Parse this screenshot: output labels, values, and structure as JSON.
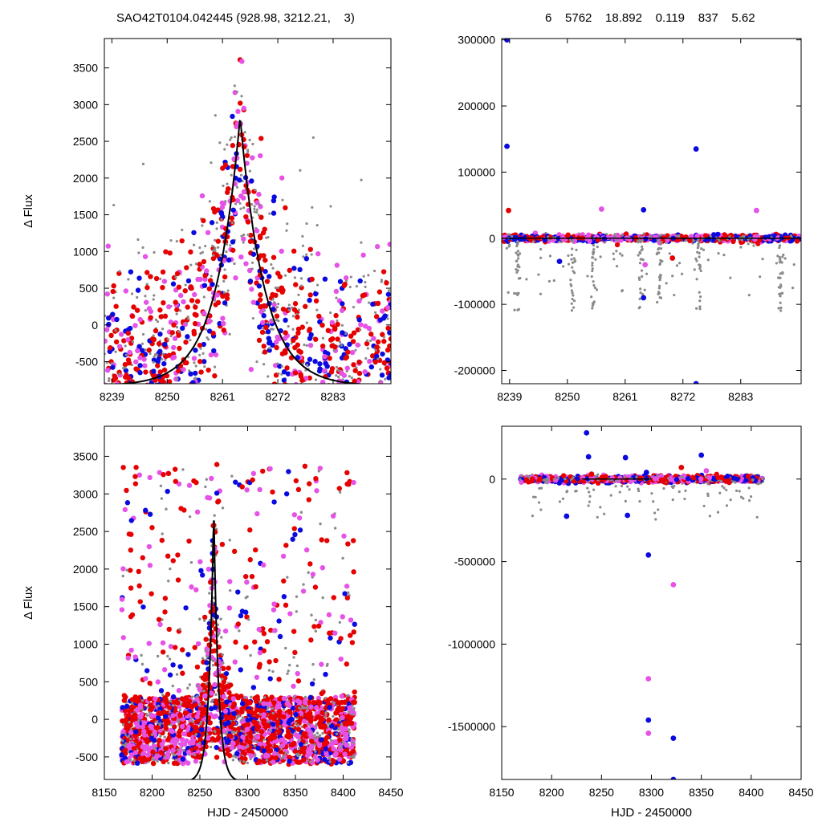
{
  "header": {
    "left": "SAO42T0104.042445 (928.98, 3212.21,    3)",
    "right": "6    5762    18.892    0.119    837    5.62"
  },
  "colors": {
    "gray": "#8a8a8a",
    "blue": "#0a0ae0",
    "red": "#e60000",
    "magenta": "#e652e6",
    "model": "#000000"
  },
  "chart_data": [
    {
      "id": "top-left",
      "type": "scatter",
      "title": "",
      "xlabel": "",
      "ylabel": "Δ Flux",
      "xlim": [
        8237.5,
        8294.5
      ],
      "ylim": [
        -800,
        3900
      ],
      "xticks": [
        8239,
        8250,
        8261,
        8272,
        8283
      ],
      "yticks": [
        -500,
        0,
        500,
        1000,
        1500,
        2000,
        2500,
        3000,
        3500
      ],
      "model": {
        "t0": 8264.5,
        "peak": 2830,
        "base": -830,
        "tau": 4.8
      },
      "series_colors": [
        "gray",
        "blue",
        "red",
        "magenta"
      ]
    },
    {
      "id": "top-right",
      "type": "scatter",
      "title": "",
      "xlabel": "",
      "ylabel": "",
      "xlim": [
        8237.5,
        8294.5
      ],
      "ylim": [
        -220000,
        302000
      ],
      "xticks": [
        8239,
        8250,
        8261,
        8272,
        8283
      ],
      "yticks": [
        -200000,
        -100000,
        0,
        100000,
        200000,
        300000
      ],
      "outliers": [
        [
          8238.5,
          300000,
          "blue"
        ],
        [
          8238.5,
          139000,
          "blue"
        ],
        [
          8274.5,
          135000,
          "blue"
        ],
        [
          8274.5,
          -220000,
          "blue"
        ],
        [
          8264.5,
          43000,
          "blue"
        ],
        [
          8264.5,
          -90000,
          "blue"
        ],
        [
          8238.8,
          42000,
          "red"
        ],
        [
          8256.5,
          44000,
          "magenta"
        ],
        [
          8286,
          42000,
          "magenta"
        ],
        [
          8248.5,
          -35000,
          "blue"
        ],
        [
          8270,
          -30000,
          "red"
        ],
        [
          8264.8,
          -40000,
          "magenta"
        ]
      ]
    },
    {
      "id": "bottom-left",
      "type": "scatter",
      "title": "",
      "xlabel": "HJD - 2450000",
      "ylabel": "Δ Flux",
      "xlim": [
        8150,
        8450
      ],
      "ylim": [
        -800,
        3900
      ],
      "xticks": [
        8150,
        8200,
        8250,
        8300,
        8350,
        8400,
        8450
      ],
      "yticks": [
        -500,
        0,
        500,
        1000,
        1500,
        2000,
        2500,
        3000,
        3500
      ],
      "model": {
        "t0": 8264.5,
        "peak": 2830,
        "base": -830,
        "tau": 4.8
      },
      "data_range": [
        8168,
        8412
      ]
    },
    {
      "id": "bottom-right",
      "type": "scatter",
      "title": "",
      "xlabel": "HJD - 2450000",
      "ylabel": "",
      "xlim": [
        8150,
        8450
      ],
      "ylim": [
        -1820000,
        320000
      ],
      "xticks": [
        8150,
        8200,
        8250,
        8300,
        8350,
        8400,
        8450
      ],
      "yticks": [
        -1500000,
        -1000000,
        -500000,
        0
      ],
      "outliers": [
        [
          8297,
          -460000,
          "blue"
        ],
        [
          8297,
          -1210000,
          "magenta"
        ],
        [
          8297,
          -1460000,
          "blue"
        ],
        [
          8297,
          -1540000,
          "magenta"
        ],
        [
          8322,
          -640000,
          "magenta"
        ],
        [
          8322,
          -1570000,
          "blue"
        ],
        [
          8322,
          -1820000,
          "blue"
        ],
        [
          8235,
          280000,
          "blue"
        ],
        [
          8215,
          -225000,
          "blue"
        ],
        [
          8276,
          -220000,
          "blue"
        ],
        [
          8237,
          135000,
          "blue"
        ],
        [
          8274,
          130000,
          "blue"
        ],
        [
          8350,
          145000,
          "blue"
        ],
        [
          8240,
          30000,
          "red"
        ],
        [
          8330,
          70000,
          "red"
        ],
        [
          8355,
          50000,
          "magenta"
        ],
        [
          8295,
          40000,
          "blue"
        ]
      ]
    }
  ]
}
